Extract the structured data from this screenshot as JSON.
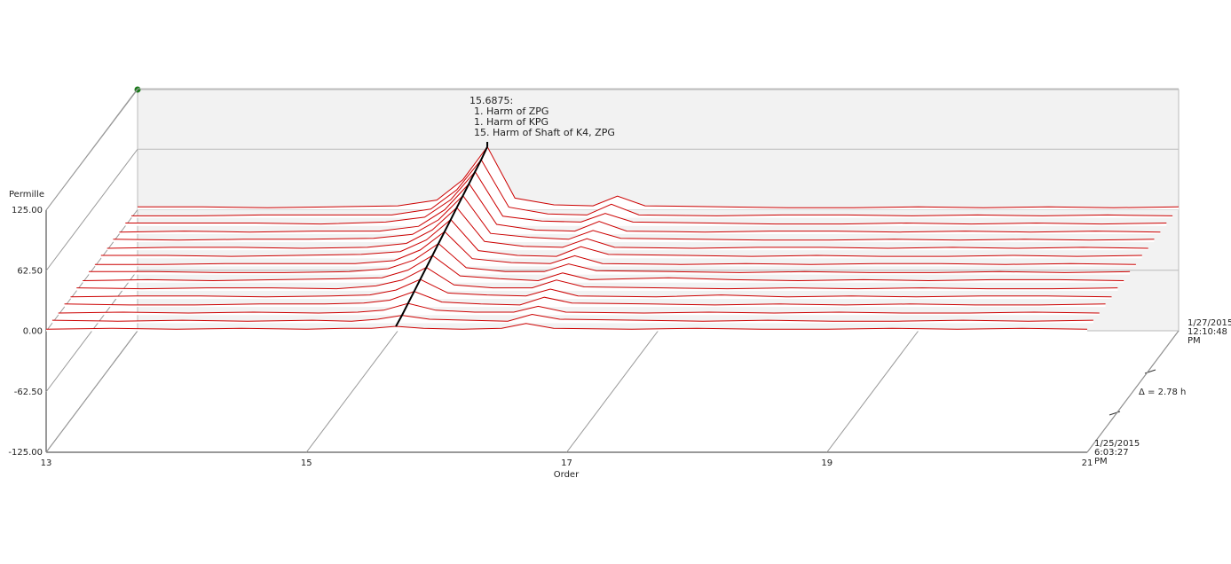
{
  "chart_data": {
    "type": "waterfall",
    "x_label": "Order",
    "y_label": "Permille",
    "xlim": [
      13,
      21
    ],
    "ylim": [
      -125,
      125
    ],
    "xticks": [
      13,
      15,
      17,
      19,
      21
    ],
    "yticks": [
      {
        "value": -125,
        "label": "-125.00"
      },
      {
        "value": -62.5,
        "label": "-62.50"
      },
      {
        "value": 0,
        "label": "0.00"
      },
      {
        "value": 62.5,
        "label": "62.50"
      },
      {
        "value": 125,
        "label": "125.00"
      }
    ],
    "time_start": [
      "1/25/2015",
      "6:03:27",
      "PM"
    ],
    "time_end": [
      "1/27/2015",
      "12:10:48",
      "PM"
    ],
    "time_step_label": "Δ = 2.78 h",
    "color": "#cc0000",
    "cursor": {
      "x": 15.6875,
      "label": "15.6875:",
      "lines": [
        "1. Harm of ZPG",
        "1. Harm of KPG",
        "15. Harm of Shaft of K4, ZPG"
      ]
    },
    "x": [
      13,
      13.5,
      14,
      14.5,
      15,
      15.3,
      15.5,
      15.6875,
      15.9,
      16.2,
      16.5,
      16.6875,
      16.9,
      17.5,
      18,
      18.5,
      19,
      19.5,
      20,
      20.5,
      21
    ],
    "series": [
      {
        "values": [
          2,
          3,
          2,
          3,
          2,
          3,
          3,
          5,
          3,
          2,
          3,
          8,
          3,
          2,
          3,
          2,
          2,
          3,
          2,
          3,
          2
        ]
      },
      {
        "values": [
          3,
          2,
          3,
          2,
          3,
          2,
          4,
          8,
          4,
          3,
          2,
          9,
          4,
          3,
          2,
          3,
          2,
          2,
          3,
          2,
          3
        ]
      },
      {
        "values": [
          2,
          3,
          2,
          3,
          2,
          3,
          5,
          12,
          5,
          3,
          3,
          9,
          3,
          2,
          3,
          2,
          3,
          2,
          2,
          3,
          2
        ]
      },
      {
        "values": [
          3,
          2,
          2,
          3,
          3,
          4,
          7,
          16,
          5,
          3,
          2,
          10,
          4,
          3,
          2,
          3,
          2,
          3,
          2,
          2,
          3
        ]
      },
      {
        "values": [
          2,
          3,
          3,
          2,
          3,
          4,
          9,
          20,
          6,
          4,
          3,
          10,
          3,
          2,
          4,
          2,
          3,
          2,
          3,
          3,
          2
        ]
      },
      {
        "values": [
          3,
          2,
          3,
          3,
          2,
          5,
          11,
          24,
          6,
          3,
          3,
          11,
          4,
          3,
          2,
          3,
          2,
          3,
          2,
          2,
          3
        ]
      },
      {
        "values": [
          2,
          3,
          2,
          3,
          4,
          5,
          13,
          28,
          7,
          4,
          2,
          10,
          3,
          5,
          3,
          2,
          3,
          2,
          3,
          3,
          2
        ]
      },
      {
        "values": [
          3,
          3,
          2,
          2,
          3,
          6,
          15,
          32,
          7,
          3,
          3,
          11,
          4,
          3,
          2,
          3,
          2,
          2,
          3,
          2,
          3
        ]
      },
      {
        "values": [
          2,
          2,
          3,
          3,
          3,
          6,
          17,
          36,
          8,
          4,
          3,
          11,
          3,
          2,
          3,
          2,
          3,
          3,
          2,
          3,
          2
        ]
      },
      {
        "values": [
          3,
          3,
          2,
          3,
          4,
          7,
          19,
          40,
          8,
          3,
          2,
          12,
          4,
          3,
          2,
          3,
          2,
          2,
          3,
          2,
          3
        ]
      },
      {
        "values": [
          2,
          3,
          3,
          2,
          3,
          7,
          21,
          44,
          9,
          4,
          3,
          12,
          3,
          2,
          3,
          3,
          2,
          3,
          2,
          3,
          2
        ]
      },
      {
        "values": [
          3,
          2,
          3,
          3,
          4,
          8,
          23,
          48,
          9,
          5,
          3,
          12,
          4,
          3,
          2,
          2,
          3,
          2,
          3,
          2,
          3
        ]
      },
      {
        "values": [
          2,
          3,
          2,
          3,
          3,
          8,
          25,
          52,
          10,
          4,
          3,
          13,
          3,
          2,
          3,
          3,
          2,
          3,
          2,
          3,
          2
        ]
      },
      {
        "values": [
          3,
          3,
          3,
          2,
          4,
          9,
          27,
          56,
          10,
          5,
          4,
          13,
          4,
          3,
          2,
          2,
          3,
          2,
          3,
          2,
          3
        ]
      },
      {
        "values": [
          2,
          2,
          3,
          3,
          3,
          9,
          29,
          60,
          11,
          4,
          3,
          14,
          3,
          2,
          3,
          3,
          2,
          3,
          2,
          3,
          2
        ]
      },
      {
        "values": [
          3,
          3,
          2,
          3,
          4,
          10,
          31,
          65,
          12,
          5,
          4,
          14,
          4,
          3,
          2,
          2,
          3,
          2,
          3,
          2,
          3
        ]
      }
    ]
  }
}
